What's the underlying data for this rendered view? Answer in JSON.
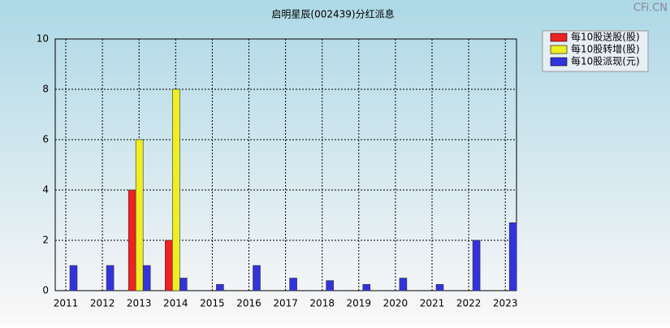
{
  "chart_data": {
    "type": "bar",
    "title": "启明星辰(002439)分红派息",
    "watermark": "CFi.CN",
    "categories": [
      "2011",
      "2012",
      "2013",
      "2014",
      "2015",
      "2016",
      "2017",
      "2018",
      "2019",
      "2020",
      "2021",
      "2022",
      "2023"
    ],
    "series": [
      {
        "name": "每10股送股(股)",
        "color": "#ee2222",
        "values": [
          0,
          0,
          4,
          2,
          0,
          0,
          0,
          0,
          0,
          0,
          0,
          0,
          0
        ]
      },
      {
        "name": "每10股转增(股)",
        "color": "#eeee22",
        "values": [
          0,
          0,
          6,
          8,
          0,
          0,
          0,
          0,
          0,
          0,
          0,
          0,
          0
        ]
      },
      {
        "name": "每10股派现(元)",
        "color": "#3333dd",
        "values": [
          1,
          1,
          1,
          0.5,
          0.25,
          1,
          0.5,
          0.4,
          0.25,
          0.5,
          0.25,
          2,
          2.7
        ]
      }
    ],
    "ylim": [
      0,
      10
    ],
    "yticks": [
      0,
      2,
      4,
      6,
      8,
      10
    ],
    "grid": true,
    "legend": "top-right"
  }
}
